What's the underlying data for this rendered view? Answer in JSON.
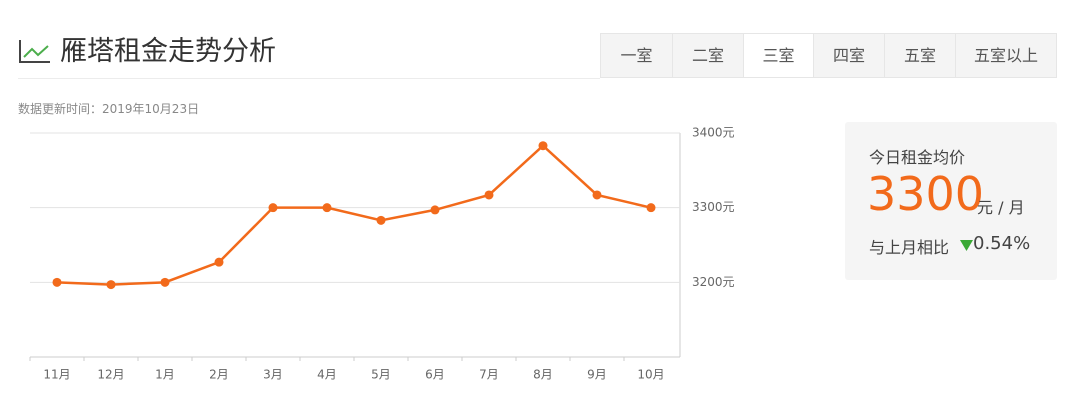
{
  "header": {
    "title": "雁塔租金走势分析",
    "tabs": [
      "一室",
      "二室",
      "三室",
      "四室",
      "五室",
      "五室以上"
    ],
    "updated": "数据更新时间：2019年10月23日"
  },
  "summary": {
    "label": "今日租金均价",
    "price": 3300,
    "unit": "元 / 月",
    "compare_label": "与上月相比",
    "change": "0.54%"
  },
  "chart_data": {
    "type": "line",
    "categories": [
      "11月",
      "12月",
      "1月",
      "2月",
      "3月",
      "4月",
      "5月",
      "6月",
      "7月",
      "8月",
      "9月",
      "10月"
    ],
    "values": [
      3200,
      3197,
      3200,
      3227,
      3300,
      3300,
      3283,
      3297,
      3317,
      3383,
      3317,
      3300
    ],
    "color": "#f26a1b",
    "ylim": [
      3100,
      3400
    ],
    "yticks": [
      {
        "value": 3200,
        "label": "3200元"
      },
      {
        "value": 3300,
        "label": "3300元"
      },
      {
        "value": 3400,
        "label": "3400元"
      }
    ],
    "grid": true
  }
}
